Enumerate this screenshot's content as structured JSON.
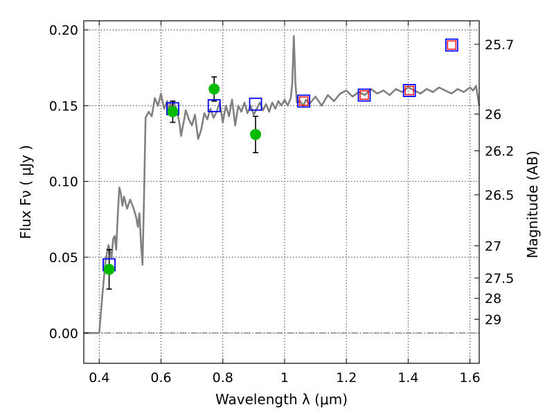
{
  "chart_data": {
    "type": "scatter",
    "xlabel": "Wavelength  λ (μm)",
    "ylabel": "Flux  Fν  ( μJy )",
    "ylabel_right": "Magnitude (AB)",
    "xlim": [
      0.35,
      1.63
    ],
    "ylim": [
      -0.02,
      0.206
    ],
    "grid": true,
    "x_ticks": [
      0.4,
      0.6,
      0.8,
      1.0,
      1.2,
      1.4,
      1.6
    ],
    "x_tick_labels": [
      "0.4",
      "0.6",
      "0.8",
      "1",
      "1.2",
      "1.4",
      "1.6"
    ],
    "y_ticks": [
      0.0,
      0.05,
      0.1,
      0.15,
      0.2
    ],
    "y_tick_labels": [
      "0.00",
      "0.05",
      "0.10",
      "0.15",
      "0.20"
    ],
    "right_ticks": [
      {
        "label": "25.7",
        "flux": 0.1905
      },
      {
        "label": "26",
        "flux": 0.1445
      },
      {
        "label": "26.2",
        "flux": 0.1202
      },
      {
        "label": "26.5",
        "flux": 0.0912
      },
      {
        "label": "27",
        "flux": 0.0575
      },
      {
        "label": "27.5",
        "flux": 0.0363
      },
      {
        "label": "28",
        "flux": 0.0229
      },
      {
        "label": "29",
        "flux": 0.0091
      }
    ],
    "colors": {
      "model": "#808080",
      "observed": "#00bb00",
      "model_photometry_edge": "#0000ff",
      "model_photometry_inner": "#ff0000",
      "zero_line": "#555555"
    },
    "series": [
      {
        "style": "gray-line",
        "x": [
          0.35,
          0.4,
          0.41,
          0.42,
          0.43,
          0.44,
          0.445,
          0.45,
          0.455,
          0.46,
          0.465,
          0.47,
          0.475,
          0.48,
          0.49,
          0.5,
          0.51,
          0.52,
          0.525,
          0.53,
          0.535,
          0.54,
          0.545,
          0.55,
          0.56,
          0.57,
          0.58,
          0.59,
          0.6,
          0.61,
          0.62,
          0.625,
          0.63,
          0.635,
          0.64,
          0.645,
          0.65,
          0.655,
          0.66,
          0.665,
          0.67,
          0.675,
          0.68,
          0.69,
          0.7,
          0.71,
          0.72,
          0.73,
          0.74,
          0.75,
          0.76,
          0.77,
          0.78,
          0.79,
          0.8,
          0.81,
          0.82,
          0.83,
          0.84,
          0.85,
          0.86,
          0.87,
          0.88,
          0.89,
          0.9,
          0.91,
          0.92,
          0.93,
          0.94,
          0.95,
          0.96,
          0.97,
          0.98,
          0.99,
          1.0,
          1.01,
          1.02,
          1.025,
          1.03,
          1.035,
          1.04,
          1.05,
          1.06,
          1.07,
          1.08,
          1.1,
          1.12,
          1.14,
          1.16,
          1.18,
          1.2,
          1.22,
          1.24,
          1.26,
          1.28,
          1.3,
          1.32,
          1.34,
          1.36,
          1.38,
          1.4,
          1.42,
          1.44,
          1.46,
          1.48,
          1.5,
          1.52,
          1.54,
          1.56,
          1.58,
          1.6,
          1.61,
          1.62,
          1.63
        ],
        "y": [
          0.0,
          0.0,
          0.025,
          0.047,
          0.058,
          0.05,
          0.062,
          0.064,
          0.055,
          0.078,
          0.096,
          0.092,
          0.084,
          0.09,
          0.082,
          0.088,
          0.083,
          0.076,
          0.07,
          0.079,
          0.06,
          0.045,
          0.09,
          0.142,
          0.146,
          0.143,
          0.155,
          0.15,
          0.158,
          0.148,
          0.153,
          0.146,
          0.152,
          0.148,
          0.153,
          0.15,
          0.148,
          0.143,
          0.138,
          0.13,
          0.136,
          0.141,
          0.147,
          0.141,
          0.137,
          0.144,
          0.128,
          0.134,
          0.145,
          0.141,
          0.148,
          0.142,
          0.146,
          0.152,
          0.139,
          0.15,
          0.143,
          0.154,
          0.137,
          0.15,
          0.146,
          0.152,
          0.145,
          0.15,
          0.144,
          0.148,
          0.152,
          0.147,
          0.151,
          0.146,
          0.152,
          0.148,
          0.153,
          0.15,
          0.154,
          0.15,
          0.155,
          0.165,
          0.196,
          0.165,
          0.152,
          0.153,
          0.15,
          0.154,
          0.151,
          0.156,
          0.15,
          0.157,
          0.153,
          0.158,
          0.16,
          0.156,
          0.159,
          0.157,
          0.161,
          0.158,
          0.16,
          0.157,
          0.161,
          0.159,
          0.162,
          0.16,
          0.158,
          0.161,
          0.159,
          0.162,
          0.16,
          0.158,
          0.161,
          0.159,
          0.162,
          0.16,
          0.163,
          0.15
        ]
      },
      {
        "style": "green-dots",
        "x": [
          0.432,
          0.638,
          0.772,
          0.906
        ],
        "y": [
          0.042,
          0.146,
          0.161,
          0.131
        ],
        "yerr": [
          0.013,
          0.007,
          0.008,
          0.012
        ]
      },
      {
        "style": "blue-squares",
        "x": [
          0.432,
          0.638,
          0.772,
          0.906,
          1.062,
          1.258,
          1.404,
          1.541
        ],
        "y": [
          0.045,
          0.148,
          0.15,
          0.151,
          0.153,
          0.157,
          0.16,
          0.19
        ]
      },
      {
        "style": "red-inner-squares",
        "x": [
          1.062,
          1.258,
          1.404,
          1.541
        ],
        "y": [
          0.153,
          0.157,
          0.16,
          0.19
        ]
      }
    ]
  }
}
